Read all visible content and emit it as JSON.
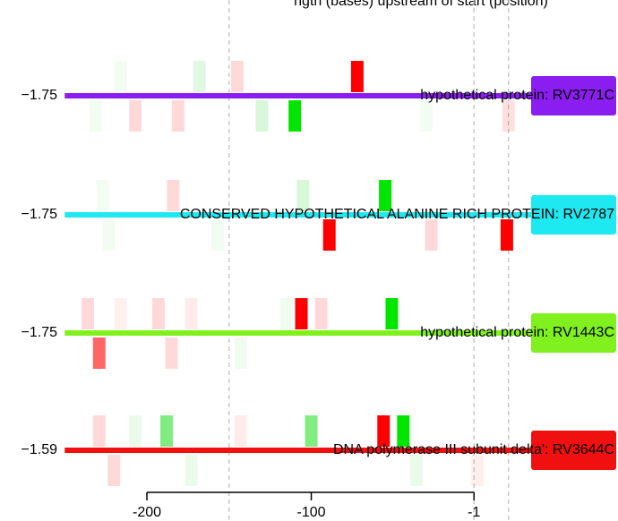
{
  "chart_data": {
    "type": "track",
    "title": "ngth (bases) upstream of start (position)",
    "xlim": [
      -250,
      30
    ],
    "xticks": [
      -200,
      -100,
      -1
    ],
    "vlines": [
      -150,
      -1,
      20
    ],
    "rows": [
      {
        "score": "−1.75",
        "name": "hypothetical protein: RV3771C",
        "color": "#8a1ef0",
        "above": {
          "x": [
            -216,
            -168,
            -145,
            -72
          ],
          "colors": [
            "rgba(0,200,0,0.05)",
            "rgba(0,200,0,0.12)",
            "rgba(255,0,0,0.15)",
            "rgba(255,0,0,1)"
          ]
        },
        "below": {
          "x": [
            -231,
            -207,
            -181,
            -130,
            -110,
            -30,
            20
          ],
          "colors": [
            "rgba(0,200,0,0.05)",
            "rgba(255,0,0,0.15)",
            "rgba(255,0,0,0.15)",
            "rgba(0,200,0,0.15)",
            "rgba(0,230,0,1)",
            "rgba(0,200,0,0.05)",
            "rgba(255,0,0,0.12)"
          ]
        }
      },
      {
        "score": "−1.75",
        "name": "CONSERVED HYPOTHETICAL ALANINE RICH PROTEIN: RV2787",
        "color": "#1ee8f0",
        "above": {
          "x": [
            -227,
            -184,
            -105,
            -55
          ],
          "colors": [
            "rgba(0,200,0,0.05)",
            "rgba(255,0,0,0.15)",
            "rgba(0,200,0,0.15)",
            "rgba(0,230,0,1)"
          ]
        },
        "below": {
          "x": [
            -223,
            -157,
            -89,
            -27,
            19
          ],
          "colors": [
            "rgba(0,200,0,0.05)",
            "rgba(0,200,0,0.05)",
            "rgba(255,0,0,1)",
            "rgba(255,0,0,0.15)",
            "rgba(255,0,0,1)"
          ]
        }
      },
      {
        "score": "−1.75",
        "name": "hypothetical protein: RV1443C",
        "color": "#80f01e",
        "above": {
          "x": [
            -236,
            -216,
            -193,
            -173,
            -115,
            -106,
            -94,
            -51
          ],
          "colors": [
            "rgba(255,0,0,0.15)",
            "rgba(255,0,0,0.06)",
            "rgba(255,0,0,0.15)",
            "rgba(255,0,0,0.08)",
            "rgba(0,200,0,0.06)",
            "rgba(255,0,0,1)",
            "rgba(255,0,0,0.15)",
            "rgba(0,230,0,1)"
          ]
        },
        "below": {
          "x": [
            -229,
            -185,
            -143
          ],
          "colors": [
            "rgba(255,0,0,0.6)",
            "rgba(255,0,0,0.15)",
            "rgba(0,200,0,0.06)"
          ]
        }
      },
      {
        "score": "−1.59",
        "name": "DNA polymerase III subunit delta': RV3644C",
        "color": "#f01010",
        "above": {
          "x": [
            -229,
            -207,
            -188,
            -143,
            -100,
            -56,
            -44
          ],
          "colors": [
            "rgba(255,0,0,0.15)",
            "rgba(0,200,0,0.08)",
            "rgba(0,220,0,0.5)",
            "rgba(255,0,0,0.08)",
            "rgba(0,220,0,0.5)",
            "rgba(255,0,0,1)",
            "rgba(0,230,0,1)"
          ]
        },
        "below": {
          "x": [
            -220,
            -173,
            -36,
            1
          ],
          "colors": [
            "rgba(255,0,0,0.15)",
            "rgba(0,200,0,0.08)",
            "rgba(0,200,0,0.08)",
            "rgba(255,0,0,0.06)"
          ]
        }
      }
    ]
  }
}
